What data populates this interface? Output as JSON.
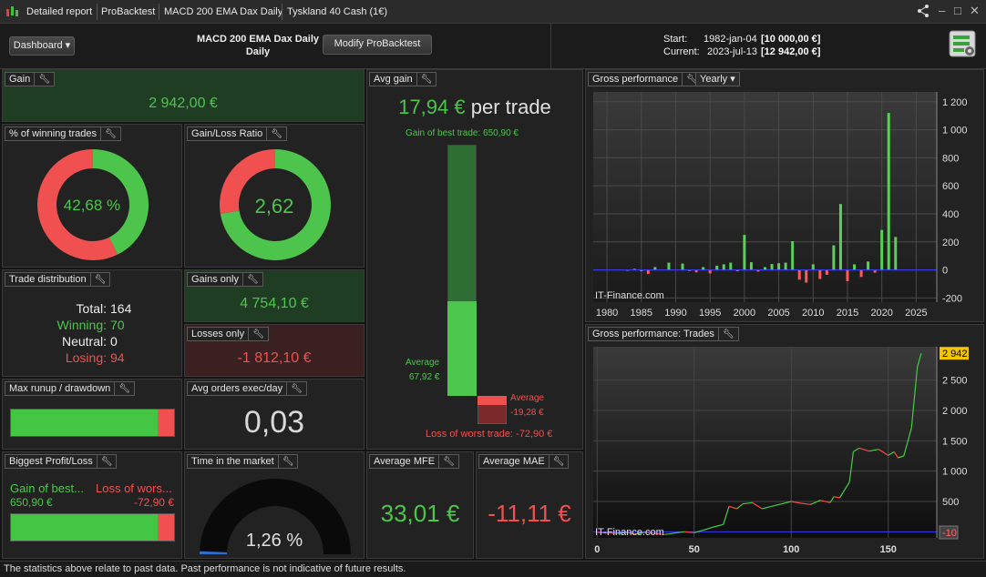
{
  "titlebar": {
    "tabs": [
      "Detailed report",
      "ProBacktest",
      "MACD 200 EMA Dax Daily",
      "Tyskland 40 Cash (1€)"
    ]
  },
  "header": {
    "dashboard_label": "Dashboard",
    "system_name": "MACD 200 EMA Dax Daily",
    "timeframe": "Daily",
    "modify_label": "Modify ProBacktest",
    "start_label": "Start:",
    "start_date": "1982-jan-04",
    "start_value": "[10 000,00 €]",
    "current_label": "Current:",
    "current_date": "2023-jul-13",
    "current_value": "[12 942,00 €]"
  },
  "gain": {
    "title": "Gain",
    "value": "2 942,00 €"
  },
  "winning_pct": {
    "title": "% of winning trades",
    "value": "42,68 %",
    "fraction": 0.4268
  },
  "gain_loss_ratio": {
    "title": "Gain/Loss Ratio",
    "value": "2,62",
    "fraction": 0.7239
  },
  "trade_distribution": {
    "title": "Trade distribution",
    "total_label": "Total:",
    "total": "164",
    "winning_label": "Winning:",
    "winning": "70",
    "neutral_label": "Neutral:",
    "neutral": "0",
    "losing_label": "Losing:",
    "losing": "94"
  },
  "gains_only": {
    "title": "Gains only",
    "value": "4 754,10 €"
  },
  "losses_only": {
    "title": "Losses only",
    "value": "-1 812,10 €"
  },
  "max_runup": {
    "title": "Max runup / drawdown",
    "runup_fraction": 0.9
  },
  "avg_orders": {
    "title": "Avg orders exec/day",
    "value": "0,03"
  },
  "biggest_profit_loss": {
    "title": "Biggest Profit/Loss",
    "gain_label": "Gain of best...",
    "gain_value": "650,90 €",
    "loss_label": "Loss of wors...",
    "loss_value": "-72,90 €",
    "profit_fraction": 0.9
  },
  "time_in_market": {
    "title": "Time in the market",
    "value": "1,26 %",
    "fraction": 0.0126
  },
  "avg_gain": {
    "title": "Avg gain",
    "value": "17,94 €",
    "unit_text": "per trade",
    "best_trade_text": "Gain of best trade: 650,90 €",
    "avg_gain_label": "Average",
    "avg_gain_value": "67,92 €",
    "avg_loss_label": "Average",
    "avg_loss_value": "-19,28 €",
    "worst_trade_text": "Loss of worst trade: -72,90 €",
    "best_trade": 650.9,
    "avg_win": 67.92,
    "avg_loss": -19.28,
    "worst_trade": -72.9
  },
  "avg_mfe": {
    "title": "Average MFE",
    "value": "33,01 €"
  },
  "avg_mae": {
    "title": "Average MAE",
    "value": "-11,11 €"
  },
  "gross_yearly": {
    "title": "Gross performance",
    "period": "Yearly",
    "watermark": "IT-Finance.com",
    "chart_data": {
      "type": "bar",
      "x": [
        1982,
        1983,
        1984,
        1985,
        1986,
        1987,
        1988,
        1989,
        1990,
        1991,
        1992,
        1993,
        1994,
        1995,
        1996,
        1997,
        1998,
        1999,
        2000,
        2001,
        2002,
        2003,
        2004,
        2005,
        2006,
        2007,
        2008,
        2009,
        2010,
        2011,
        2012,
        2013,
        2014,
        2015,
        2016,
        2017,
        2018,
        2019,
        2020,
        2021,
        2022,
        2023
      ],
      "values": [
        0,
        -5,
        8,
        -10,
        -28,
        20,
        0,
        52,
        0,
        45,
        -8,
        -18,
        20,
        -25,
        30,
        40,
        52,
        -10,
        250,
        55,
        -12,
        20,
        42,
        48,
        52,
        205,
        -70,
        -90,
        40,
        -65,
        -35,
        175,
        470,
        -80,
        40,
        -50,
        60,
        -20,
        285,
        1120,
        235,
        0
      ],
      "xlim": [
        1978,
        2028
      ],
      "ylim": [
        -230,
        1270
      ],
      "x_ticks": [
        1980,
        1985,
        1990,
        1995,
        2000,
        2005,
        2010,
        2015,
        2020,
        2025
      ],
      "y_ticks": [
        "1 200",
        "1 000",
        "800",
        "600",
        "400",
        "200",
        "0",
        "-200"
      ],
      "y_tick_values": [
        1200,
        1000,
        800,
        600,
        400,
        200,
        0,
        -200
      ],
      "grid": true,
      "colors": {
        "positive": "#59d159",
        "negative": "#ff5a5a",
        "zero_line": "#3a3aff"
      }
    }
  },
  "gross_trades": {
    "title": "Gross performance: Trades",
    "watermark": "IT-Finance.com",
    "last_label": "2 942",
    "min_label": "-10",
    "chart_data": {
      "type": "line",
      "x": [
        0,
        5,
        10,
        15,
        20,
        25,
        30,
        35,
        40,
        45,
        50,
        55,
        60,
        65,
        68,
        72,
        75,
        80,
        85,
        90,
        95,
        100,
        105,
        110,
        115,
        120,
        122,
        125,
        130,
        132,
        135,
        140,
        145,
        150,
        153,
        155,
        158,
        160,
        162,
        165,
        167
      ],
      "y": [
        -10,
        -20,
        -25,
        -10,
        -40,
        -5,
        -30,
        -45,
        -20,
        0,
        -15,
        30,
        80,
        120,
        420,
        380,
        460,
        480,
        380,
        420,
        460,
        500,
        470,
        450,
        520,
        480,
        580,
        560,
        820,
        1320,
        1380,
        1330,
        1360,
        1260,
        1320,
        1220,
        1250,
        1480,
        1720,
        2720,
        2942
      ],
      "xlim": [
        -2,
        175
      ],
      "ylim": [
        -100,
        3050
      ],
      "x_ticks": [
        0,
        50,
        100,
        150
      ],
      "y_ticks": [
        "2 500",
        "2 000",
        "1 500",
        "1 000",
        "500"
      ],
      "y_tick_values": [
        2500,
        2000,
        1500,
        1000,
        500
      ],
      "grid": true,
      "colors": {
        "line_up": "#44cc44",
        "line_down": "#ff4444",
        "zero_line": "#3a3aff"
      }
    }
  },
  "footer": {
    "text": "The statistics above relate to past data. Past performance is not indicative of future results."
  },
  "colors": {
    "green": "#4dc54d",
    "red": "#f05050",
    "bg": "#222222",
    "gain_bg": "#1f3d22",
    "loss_bg": "#3a2020"
  }
}
